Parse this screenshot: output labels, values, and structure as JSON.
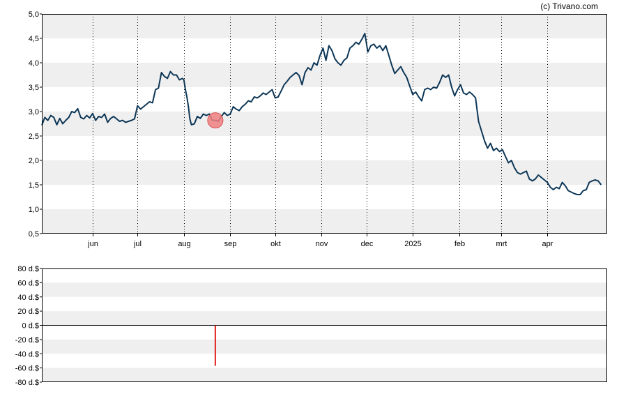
{
  "credit": "(c) Trivano.com",
  "colors": {
    "price_line": "#0d3656",
    "band": "#efefef",
    "marker_fill": "#f08080",
    "marker_stroke": "#d65050",
    "volume_bar": "#e02020",
    "grid_vertical": "#000000",
    "axis": "#000000"
  },
  "chart_data": [
    {
      "type": "line",
      "name": "price",
      "xlabel": "",
      "ylabel": "",
      "x_ticks": [
        "jun",
        "jul",
        "aug",
        "sep",
        "okt",
        "nov",
        "dec",
        "2025",
        "feb",
        "mrt",
        "apr"
      ],
      "x_tick_days": [
        21,
        51,
        82,
        113,
        143,
        174,
        204,
        235,
        266,
        294,
        325
      ],
      "x_range_days": [
        -13,
        365
      ],
      "y_ticks": [
        "0,5",
        "1,0",
        "1,5",
        "2,0",
        "2,5",
        "3,0",
        "3,5",
        "4,0",
        "4,5",
        "5,0"
      ],
      "ylim": [
        0.5,
        5.0
      ],
      "grid": {
        "vertical": "dotted at month ticks",
        "horizontal": "alternating bands"
      },
      "marker": {
        "day": 103,
        "value": 2.82
      },
      "series": [
        {
          "points": [
            [
              -13,
              2.72
            ],
            [
              -11,
              2.88
            ],
            [
              -9,
              2.82
            ],
            [
              -7,
              2.92
            ],
            [
              -5,
              2.88
            ],
            [
              -3,
              2.73
            ],
            [
              -1,
              2.86
            ],
            [
              1,
              2.75
            ],
            [
              3,
              2.82
            ],
            [
              5,
              2.88
            ],
            [
              7,
              3.0
            ],
            [
              9,
              2.98
            ],
            [
              11,
              3.06
            ],
            [
              13,
              2.88
            ],
            [
              15,
              2.85
            ],
            [
              17,
              2.92
            ],
            [
              19,
              2.87
            ],
            [
              21,
              2.96
            ],
            [
              23,
              2.82
            ],
            [
              25,
              2.9
            ],
            [
              27,
              2.88
            ],
            [
              29,
              2.95
            ],
            [
              31,
              2.78
            ],
            [
              33,
              2.86
            ],
            [
              35,
              2.9
            ],
            [
              37,
              2.85
            ],
            [
              39,
              2.8
            ],
            [
              41,
              2.82
            ],
            [
              43,
              2.78
            ],
            [
              45,
              2.8
            ],
            [
              47,
              2.82
            ],
            [
              49,
              2.85
            ],
            [
              51,
              3.12
            ],
            [
              53,
              3.05
            ],
            [
              55,
              3.1
            ],
            [
              57,
              3.15
            ],
            [
              59,
              3.2
            ],
            [
              61,
              3.18
            ],
            [
              63,
              3.45
            ],
            [
              65,
              3.48
            ],
            [
              67,
              3.8
            ],
            [
              69,
              3.72
            ],
            [
              71,
              3.68
            ],
            [
              73,
              3.82
            ],
            [
              75,
              3.75
            ],
            [
              77,
              3.75
            ],
            [
              79,
              3.65
            ],
            [
              81,
              3.68
            ],
            [
              82,
              3.65
            ],
            [
              83,
              3.45
            ],
            [
              84,
              3.3
            ],
            [
              85,
              3.1
            ],
            [
              86,
              2.85
            ],
            [
              87,
              2.73
            ],
            [
              89,
              2.75
            ],
            [
              91,
              2.9
            ],
            [
              93,
              2.86
            ],
            [
              95,
              2.95
            ],
            [
              97,
              2.92
            ],
            [
              99,
              2.95
            ],
            [
              101,
              2.82
            ],
            [
              103,
              2.82
            ],
            [
              105,
              2.8
            ],
            [
              107,
              2.9
            ],
            [
              109,
              2.98
            ],
            [
              111,
              2.92
            ],
            [
              113,
              2.95
            ],
            [
              115,
              3.1
            ],
            [
              117,
              3.05
            ],
            [
              119,
              3.02
            ],
            [
              121,
              3.1
            ],
            [
              123,
              3.15
            ],
            [
              125,
              3.22
            ],
            [
              127,
              3.2
            ],
            [
              129,
              3.3
            ],
            [
              131,
              3.28
            ],
            [
              133,
              3.32
            ],
            [
              135,
              3.38
            ],
            [
              137,
              3.35
            ],
            [
              139,
              3.4
            ],
            [
              141,
              3.45
            ],
            [
              143,
              3.28
            ],
            [
              145,
              3.3
            ],
            [
              147,
              3.42
            ],
            [
              149,
              3.55
            ],
            [
              151,
              3.62
            ],
            [
              153,
              3.7
            ],
            [
              155,
              3.75
            ],
            [
              157,
              3.8
            ],
            [
              159,
              3.74
            ],
            [
              161,
              3.55
            ],
            [
              163,
              3.8
            ],
            [
              165,
              3.9
            ],
            [
              167,
              3.85
            ],
            [
              169,
              4.0
            ],
            [
              171,
              3.95
            ],
            [
              173,
              4.15
            ],
            [
              175,
              4.3
            ],
            [
              177,
              4.05
            ],
            [
              179,
              4.35
            ],
            [
              181,
              4.25
            ],
            [
              183,
              4.08
            ],
            [
              185,
              4.0
            ],
            [
              187,
              3.95
            ],
            [
              189,
              4.05
            ],
            [
              191,
              4.1
            ],
            [
              193,
              4.3
            ],
            [
              195,
              4.35
            ],
            [
              197,
              4.42
            ],
            [
              199,
              4.38
            ],
            [
              201,
              4.48
            ],
            [
              203,
              4.6
            ],
            [
              205,
              4.22
            ],
            [
              207,
              4.35
            ],
            [
              209,
              4.38
            ],
            [
              211,
              4.3
            ],
            [
              213,
              4.35
            ],
            [
              215,
              4.25
            ],
            [
              217,
              4.35
            ],
            [
              219,
              4.15
            ],
            [
              221,
              3.95
            ],
            [
              223,
              3.78
            ],
            [
              225,
              3.85
            ],
            [
              227,
              3.92
            ],
            [
              229,
              3.8
            ],
            [
              231,
              3.7
            ],
            [
              233,
              3.52
            ],
            [
              235,
              3.35
            ],
            [
              237,
              3.4
            ],
            [
              239,
              3.3
            ],
            [
              241,
              3.22
            ],
            [
              243,
              3.45
            ],
            [
              245,
              3.48
            ],
            [
              247,
              3.45
            ],
            [
              249,
              3.5
            ],
            [
              251,
              3.48
            ],
            [
              253,
              3.6
            ],
            [
              255,
              3.75
            ],
            [
              257,
              3.7
            ],
            [
              259,
              3.75
            ],
            [
              261,
              3.5
            ],
            [
              263,
              3.32
            ],
            [
              265,
              3.45
            ],
            [
              267,
              3.55
            ],
            [
              269,
              3.38
            ],
            [
              271,
              3.35
            ],
            [
              273,
              3.4
            ],
            [
              275,
              3.35
            ],
            [
              277,
              3.28
            ],
            [
              279,
              2.8
            ],
            [
              281,
              2.6
            ],
            [
              283,
              2.4
            ],
            [
              285,
              2.25
            ],
            [
              287,
              2.35
            ],
            [
              289,
              2.2
            ],
            [
              291,
              2.25
            ],
            [
              293,
              2.18
            ],
            [
              295,
              2.22
            ],
            [
              297,
              2.08
            ],
            [
              299,
              1.95
            ],
            [
              301,
              2.0
            ],
            [
              303,
              1.85
            ],
            [
              305,
              1.75
            ],
            [
              307,
              1.72
            ],
            [
              309,
              1.75
            ],
            [
              311,
              1.78
            ],
            [
              313,
              1.62
            ],
            [
              315,
              1.58
            ],
            [
              317,
              1.62
            ],
            [
              319,
              1.7
            ],
            [
              321,
              1.65
            ],
            [
              323,
              1.6
            ],
            [
              325,
              1.55
            ],
            [
              327,
              1.45
            ],
            [
              329,
              1.4
            ],
            [
              331,
              1.45
            ],
            [
              333,
              1.42
            ],
            [
              335,
              1.55
            ],
            [
              337,
              1.48
            ],
            [
              339,
              1.38
            ],
            [
              341,
              1.35
            ],
            [
              343,
              1.32
            ],
            [
              345,
              1.3
            ],
            [
              347,
              1.3
            ],
            [
              349,
              1.38
            ],
            [
              351,
              1.4
            ],
            [
              353,
              1.55
            ],
            [
              355,
              1.58
            ],
            [
              357,
              1.6
            ],
            [
              359,
              1.58
            ],
            [
              361,
              1.5
            ]
          ]
        }
      ]
    },
    {
      "type": "bar",
      "name": "volume",
      "xlabel": "",
      "ylabel": "",
      "y_ticks": [
        "80 d.$",
        "60 d.$",
        "40 d.$",
        "20 d.$",
        "0 d.$",
        "-20 d.$",
        "-40 d.$",
        "-60 d.$",
        "-80 d.$"
      ],
      "y_tick_values": [
        80,
        60,
        40,
        20,
        0,
        -20,
        -40,
        -60,
        -80
      ],
      "ylim": [
        -80,
        80
      ],
      "grid": {
        "horizontal": "alternating bands"
      },
      "bars": [
        {
          "day": 103,
          "value": -57
        }
      ]
    }
  ]
}
